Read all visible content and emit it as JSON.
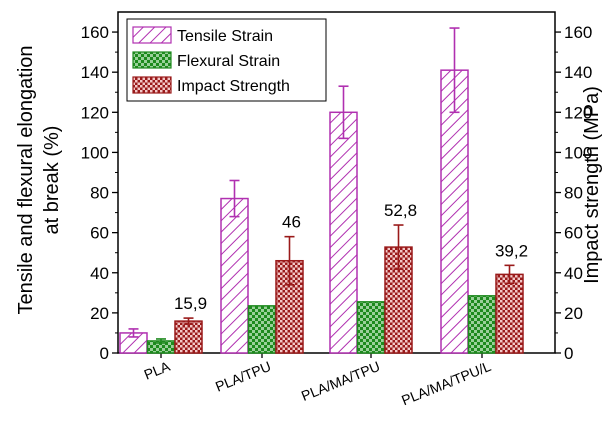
{
  "chart_data": {
    "type": "bar",
    "categories": [
      "PLA",
      "PLA/TPU",
      "PLA/MA/TPU",
      "PLA/MA/TPU/L"
    ],
    "series": [
      {
        "name": "Tensile Strain",
        "values": [
          10,
          77,
          120,
          141
        ],
        "errors": [
          2,
          9,
          13,
          21
        ],
        "color": "#b030b0",
        "axis": "left"
      },
      {
        "name": "Flexural Strain",
        "values": [
          6,
          23.5,
          25.5,
          28.5
        ],
        "errors": [
          1,
          0,
          0,
          0
        ],
        "color": "#1e8a1e",
        "axis": "left"
      },
      {
        "name": "Impact Strength",
        "values": [
          15.9,
          46,
          52.8,
          39.2
        ],
        "errors": [
          1.5,
          12,
          11,
          4.5
        ],
        "color": "#9a1a1a",
        "axis": "right"
      }
    ],
    "data_labels": [
      "15,9",
      "46",
      "52,8",
      "39,2"
    ],
    "ylabel_left_line1": "Tensile and flexural elongation",
    "ylabel_left_line2": "at break (%)",
    "ylabel_right": "Impact strength (MPa)",
    "ylim": [
      0,
      170
    ],
    "yticks": [
      "0",
      "20",
      "40",
      "60",
      "80",
      "100",
      "120",
      "140",
      "160"
    ],
    "legend_position": "top-left"
  }
}
